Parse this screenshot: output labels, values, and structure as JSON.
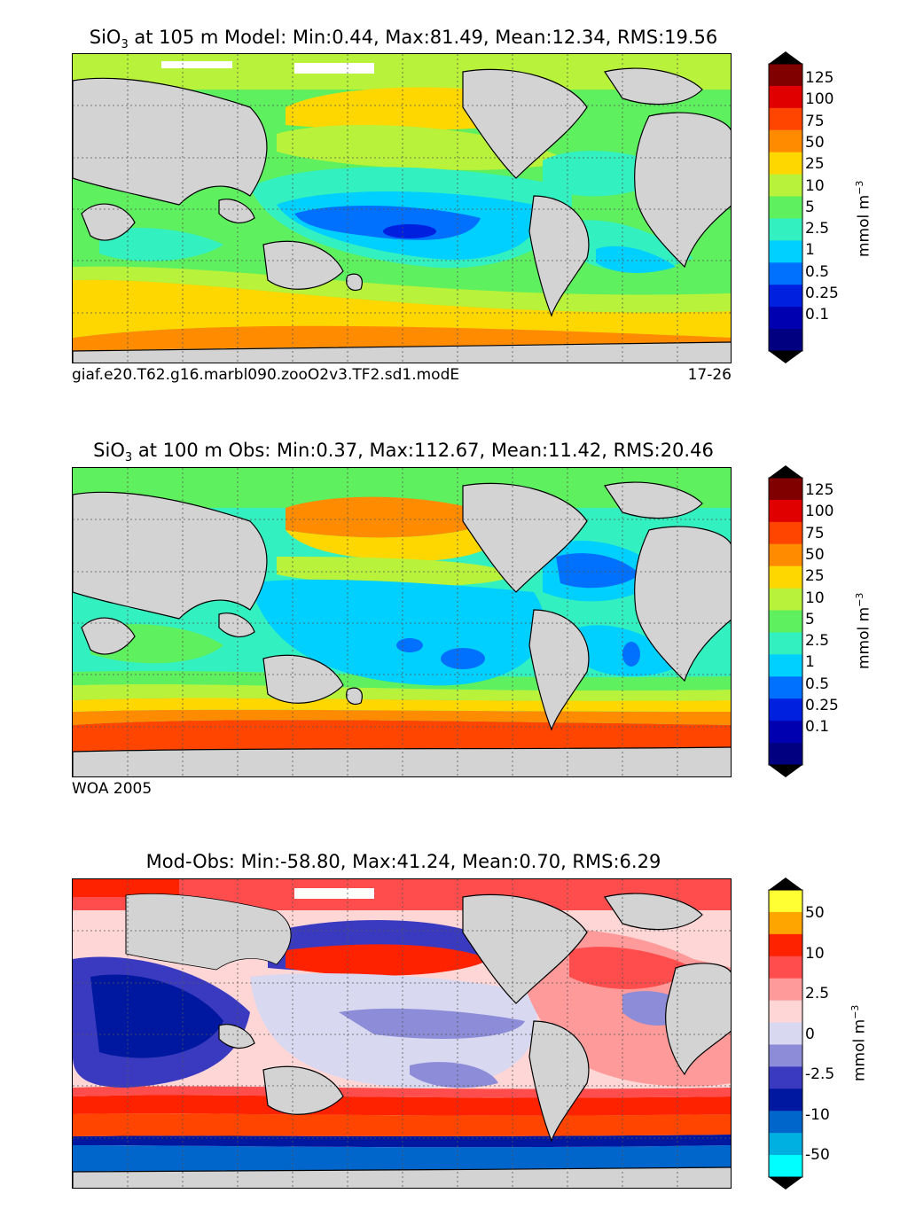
{
  "panels": [
    {
      "id": "model",
      "title_prefix": "SiO",
      "title_sub": "3",
      "title_rest": " at 105 m Model: Min:0.44, Max:81.49, Mean:12.34, RMS:19.56",
      "caption_left": "giaf.e20.T62.g16.marbl090.zooO2v3.TF2.sd1.modE",
      "caption_right": "17-26",
      "colorbar": {
        "ticks": [
          "125",
          "100",
          "75",
          "50",
          "25",
          "10",
          "5",
          "2.5",
          "1",
          "0.5",
          "0.25",
          "0.1"
        ],
        "colors": [
          "#800000",
          "#e00000",
          "#ff4500",
          "#ff8c00",
          "#ffd700",
          "#b8f23a",
          "#5ef05e",
          "#33f0c0",
          "#00d0ff",
          "#0070ff",
          "#0020e0",
          "#0000b0",
          "#000080"
        ],
        "extend_top": "#000000",
        "extend_bottom": "#000000",
        "unit_base": "mmol m",
        "unit_sup": "−3"
      }
    },
    {
      "id": "obs",
      "title_prefix": "SiO",
      "title_sub": "3",
      "title_rest": " at 100 m Obs: Min:0.37, Max:112.67, Mean:11.42, RMS:20.46",
      "caption_left": "WOA 2005",
      "caption_right": "",
      "colorbar": {
        "ticks": [
          "125",
          "100",
          "75",
          "50",
          "25",
          "10",
          "5",
          "2.5",
          "1",
          "0.5",
          "0.25",
          "0.1"
        ],
        "colors": [
          "#800000",
          "#e00000",
          "#ff4500",
          "#ff8c00",
          "#ffd700",
          "#b8f23a",
          "#5ef05e",
          "#33f0c0",
          "#00d0ff",
          "#0070ff",
          "#0020e0",
          "#0000b0",
          "#000080"
        ],
        "extend_top": "#000000",
        "extend_bottom": "#000000",
        "unit_base": "mmol m",
        "unit_sup": "−3"
      }
    },
    {
      "id": "diff",
      "title_prefix": "",
      "title_sub": "",
      "title_rest": "Mod-Obs: Min:-58.80, Max:41.24, Mean:0.70, RMS:6.29",
      "caption_left": "",
      "caption_right": "",
      "colorbar": {
        "ticks": [
          "50",
          "10",
          "2.5",
          "0",
          "-2.5",
          "-10",
          "-50"
        ],
        "colors": [
          "#ffff33",
          "#ffa500",
          "#ff2200",
          "#ff4c4c",
          "#ff9a9a",
          "#ffd6d6",
          "#d8d8f0",
          "#8c8cd8",
          "#3a3ac0",
          "#0018a0",
          "#0066cc",
          "#00b0e0",
          "#00ffff"
        ],
        "extend_top": "#000000",
        "extend_bottom": "#000000",
        "unit_base": "mmol m",
        "unit_sup": "−3"
      }
    }
  ]
}
